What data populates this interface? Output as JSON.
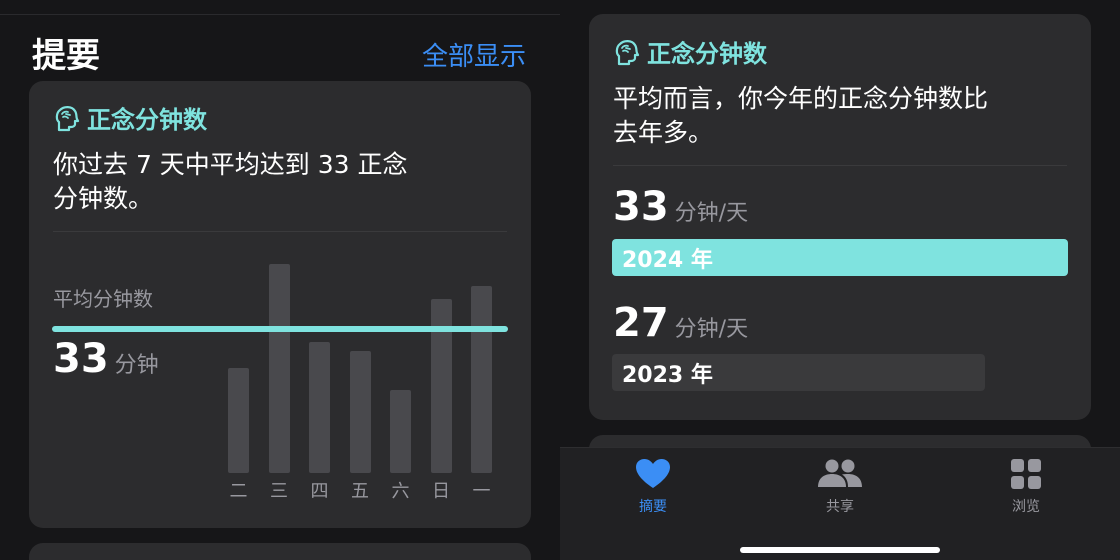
{
  "summary": {
    "title": "提要",
    "show_all": "全部显示"
  },
  "mindful_card": {
    "header": "正念分钟数",
    "description_line1": "你过去 7 天中平均达到 33 正念",
    "description_line2": "分钟数。",
    "avg_label": "平均分钟数",
    "avg_value": "33",
    "avg_unit": "分钟"
  },
  "chart_data": {
    "type": "bar",
    "categories": [
      "二",
      "三",
      "四",
      "五",
      "六",
      "日",
      "一"
    ],
    "values": [
      24,
      48,
      30,
      28,
      19,
      40,
      43
    ],
    "average": 33,
    "ylim": [
      0,
      50
    ]
  },
  "compare_card": {
    "header": "正念分钟数",
    "description_line1": "平均而言，你今年的正念分钟数比",
    "description_line2": "去年多。",
    "this_year": {
      "value": "33",
      "unit": "分钟/天",
      "label": "2024 年",
      "fraction": 1.0,
      "color": "#7fe3df"
    },
    "last_year": {
      "value": "27",
      "unit": "分钟/天",
      "label": "2023 年",
      "fraction": 0.818,
      "color": "#3a3a3c"
    }
  },
  "tabbar": {
    "tabs": [
      {
        "label": "摘要",
        "active": true
      },
      {
        "label": "共享",
        "active": false
      },
      {
        "label": "浏览",
        "active": false
      }
    ],
    "active_color": "#3b8ef5",
    "inactive_color": "#98989f"
  }
}
